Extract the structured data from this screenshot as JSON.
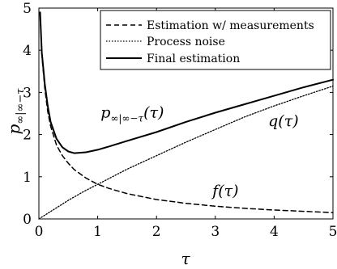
{
  "chart_data": {
    "type": "line",
    "xlabel": "τ",
    "ylabel": {
      "base": "p",
      "subscript": "∞|∞−τ"
    },
    "xlim": [
      0,
      5
    ],
    "ylim": [
      0,
      5
    ],
    "x_ticks": [
      "0",
      "1",
      "2",
      "3",
      "4",
      "5"
    ],
    "y_ticks": [
      "0",
      "1",
      "2",
      "3",
      "4",
      "5"
    ],
    "grid": false,
    "legend_position": "top-right",
    "series": [
      {
        "name": "Estimation w/ measurements",
        "style": "dashed",
        "x": [
          0.02,
          0.05,
          0.1,
          0.15,
          0.2,
          0.3,
          0.4,
          0.5,
          0.6,
          0.8,
          1.0,
          1.2,
          1.5,
          2.0,
          2.5,
          3.0,
          3.5,
          4.0,
          4.5,
          5.0
        ],
        "y": [
          4.9,
          3.9,
          3.1,
          2.55,
          2.2,
          1.75,
          1.5,
          1.32,
          1.17,
          0.97,
          0.82,
          0.72,
          0.6,
          0.46,
          0.37,
          0.3,
          0.25,
          0.21,
          0.18,
          0.15
        ]
      },
      {
        "name": "Process noise",
        "style": "dotted",
        "x": [
          0,
          0.25,
          0.5,
          0.75,
          1.0,
          1.25,
          1.5,
          2.0,
          2.5,
          3.0,
          3.5,
          4.0,
          4.5,
          5.0
        ],
        "y": [
          0,
          0.22,
          0.44,
          0.64,
          0.82,
          1.0,
          1.18,
          1.5,
          1.82,
          2.12,
          2.42,
          2.68,
          2.92,
          3.15
        ]
      },
      {
        "name": "Final estimation",
        "style": "solid",
        "x": [
          0.02,
          0.05,
          0.1,
          0.15,
          0.2,
          0.3,
          0.4,
          0.5,
          0.6,
          0.8,
          1.0,
          1.2,
          1.5,
          2.0,
          2.5,
          3.0,
          3.5,
          4.0,
          4.5,
          5.0
        ],
        "y": [
          4.9,
          3.95,
          3.2,
          2.68,
          2.3,
          1.9,
          1.7,
          1.6,
          1.56,
          1.58,
          1.64,
          1.72,
          1.85,
          2.06,
          2.3,
          2.52,
          2.72,
          2.92,
          3.12,
          3.3
        ]
      }
    ],
    "annotations": [
      {
        "text": "p",
        "sub": "∞|∞−τ",
        "suffix": "(τ)",
        "x": 1.05,
        "y": 2.4
      },
      {
        "text": "q(τ)",
        "x": 3.9,
        "y": 2.2
      },
      {
        "text": "f(τ)",
        "x": 2.95,
        "y": 0.55
      }
    ]
  }
}
